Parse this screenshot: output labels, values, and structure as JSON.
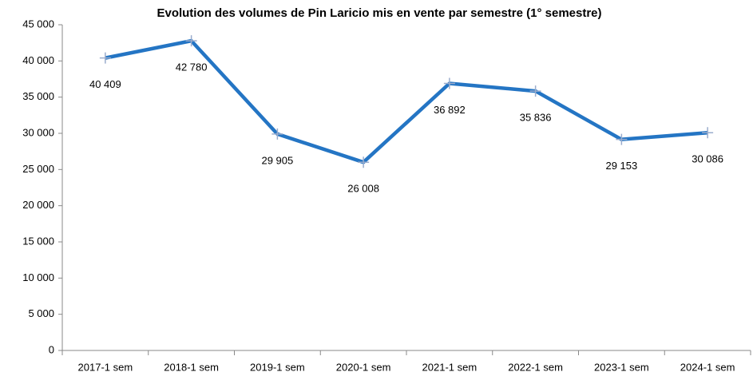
{
  "chart_data": {
    "type": "line",
    "title": "Evolution des volumes de Pin Laricio mis en vente par semestre (1° semestre)",
    "categories": [
      "2017-1 sem",
      "2018-1 sem",
      "2019-1 sem",
      "2020-1 sem",
      "2021-1 sem",
      "2022-1 sem",
      "2023-1 sem",
      "2024-1 sem"
    ],
    "series": [
      {
        "name": "Volumes",
        "color": "#2475c4",
        "values": [
          40409,
          42780,
          29905,
          26008,
          36892,
          35836,
          29153,
          30086
        ],
        "value_labels": [
          "40 409",
          "42 780",
          "29 905",
          "26 008",
          "36 892",
          "35 836",
          "29 153",
          "30 086"
        ]
      }
    ],
    "marker_color": "#9aaccc",
    "ylim": [
      0,
      45000
    ],
    "yticks": [
      {
        "value": 0,
        "label": "0"
      },
      {
        "value": 5000,
        "label": "5 000"
      },
      {
        "value": 10000,
        "label": "10 000"
      },
      {
        "value": 15000,
        "label": "15 000"
      },
      {
        "value": 20000,
        "label": "20 000"
      },
      {
        "value": 25000,
        "label": "25 000"
      },
      {
        "value": 30000,
        "label": "30 000"
      },
      {
        "value": 35000,
        "label": "35 000"
      },
      {
        "value": 40000,
        "label": "40 000"
      },
      {
        "value": 45000,
        "label": "45 000"
      }
    ],
    "grid": false
  }
}
